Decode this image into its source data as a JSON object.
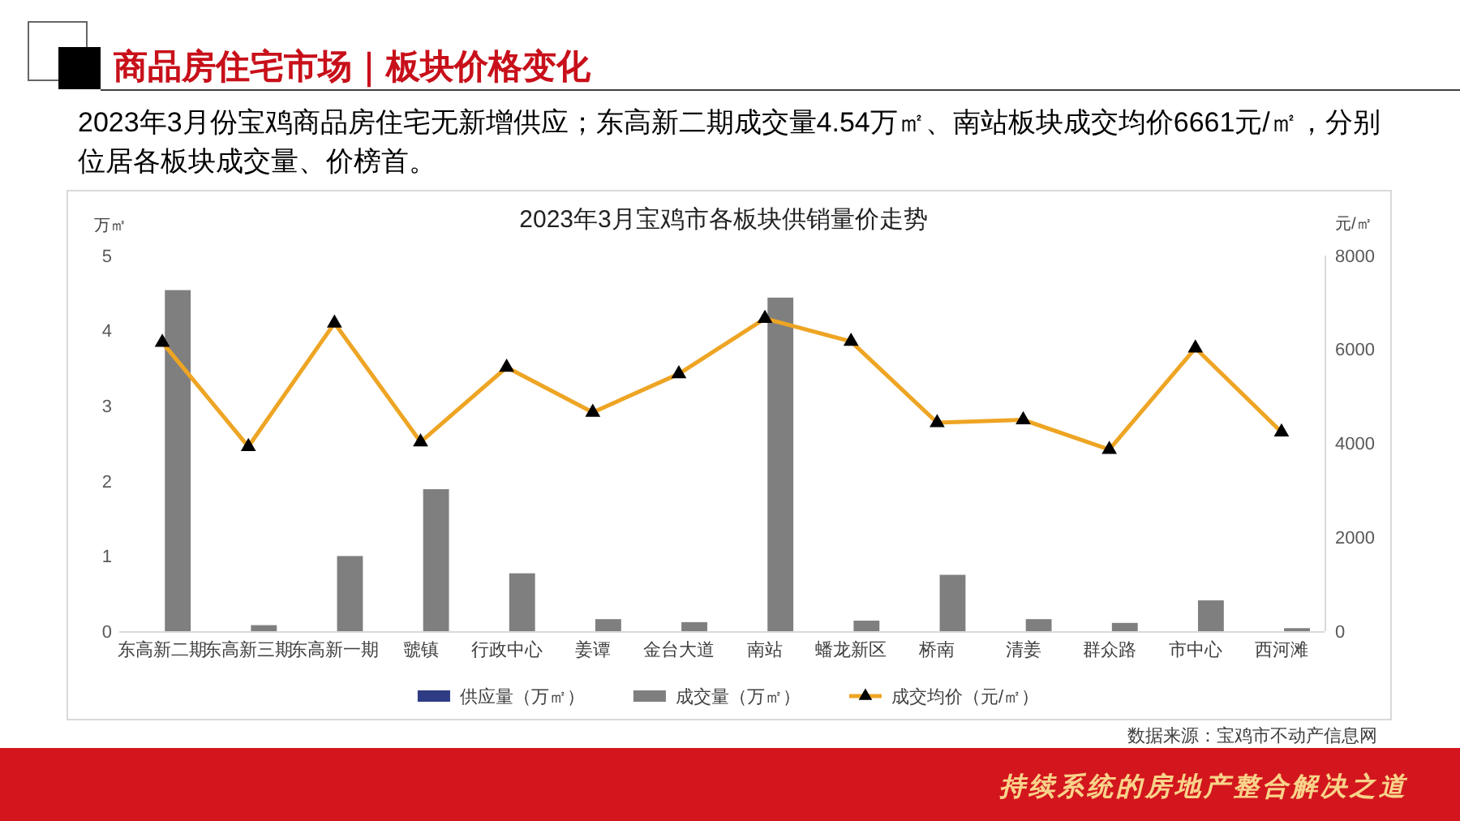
{
  "chart_data": {
    "type": "bar",
    "title": "2023年3月宝鸡市各板块供销量价走势",
    "subtitle": "2023年3月份宝鸡商品房住宅无新增供应；东高新二期成交量4.54万㎡、南站板块成交均价6661元/㎡，分别位居各板块成交量、价榜首。",
    "ylabel": "万㎡",
    "y2label": "元/㎡",
    "annotations": [
      "商品房住宅市场｜板块价格变化",
      "数据来源：宝鸡市不动产信息网",
      "持续系统的房地产整合解决之道"
    ],
    "categories": [
      "东高新二期",
      "东高新三期",
      "东高新一期",
      "虢镇",
      "行政中心",
      "姜谭",
      "金台大道",
      "南站",
      "蟠龙新区",
      "桥南",
      "清姜",
      "群众路",
      "市中心",
      "西河滩"
    ],
    "series": [
      {
        "name": "供应量（万㎡）",
        "color": "#2e3c84",
        "values": [
          0,
          0,
          0,
          0,
          0,
          0,
          0,
          0,
          0,
          0,
          0,
          0,
          0,
          0
        ]
      },
      {
        "name": "成交量（万㎡）",
        "color": "#7f7f7f",
        "values": [
          4.54,
          0.08,
          1.0,
          1.89,
          0.77,
          0.16,
          0.12,
          4.44,
          0.14,
          0.75,
          0.16,
          0.11,
          0.41,
          0.04
        ]
      },
      {
        "name": "成交均价（元/㎡）",
        "type": "line",
        "axis": "y2",
        "color": "#eea524",
        "values": [
          6150,
          3930,
          6560,
          4030,
          5620,
          4660,
          5480,
          6660,
          6170,
          4440,
          4500,
          3870,
          6030,
          4240
        ]
      }
    ],
    "ylim": [
      0,
      5
    ],
    "yticks": [
      0,
      1,
      2,
      3,
      4,
      5
    ],
    "y2lim": [
      0,
      8000
    ],
    "y2ticks": [
      0,
      2000,
      4000,
      6000,
      8000
    ],
    "legend": "bottom",
    "marker": "triangle",
    "line_style": "solid"
  }
}
